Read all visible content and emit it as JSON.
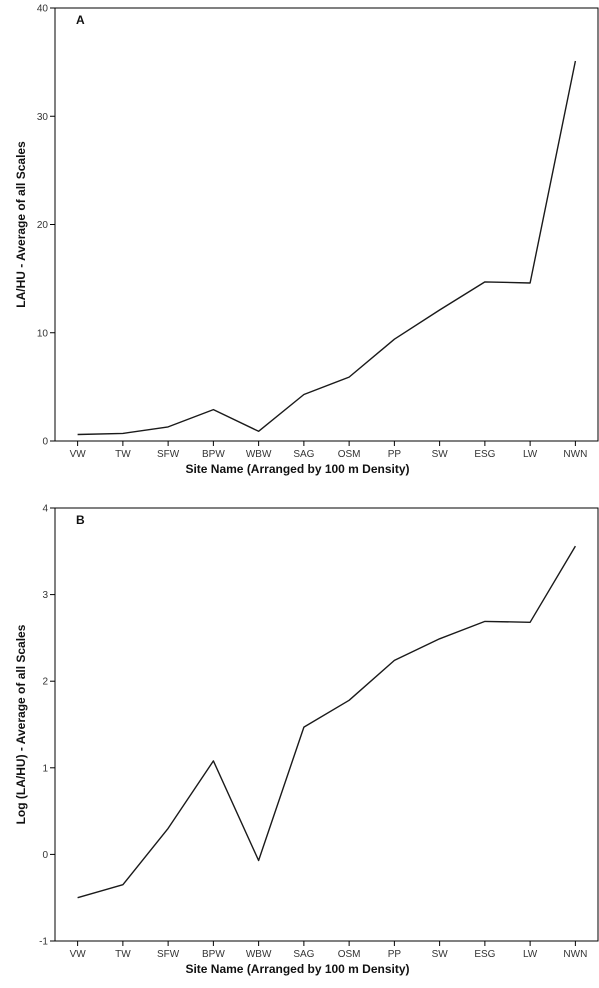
{
  "chart_data": [
    {
      "type": "line",
      "panel_label": "A",
      "categories": [
        "VW",
        "TW",
        "SFW",
        "BPW",
        "WBW",
        "SAG",
        "OSM",
        "PP",
        "SW",
        "ESG",
        "LW",
        "NWN"
      ],
      "values": [
        0.6,
        0.7,
        1.3,
        2.9,
        0.9,
        4.3,
        5.9,
        9.4,
        12.1,
        14.7,
        14.6,
        35.1
      ],
      "xlabel": "Site Name (Arranged by 100 m Density)",
      "ylabel": "LA/HU - Average of all Scales",
      "ylim": [
        0,
        40
      ],
      "yticks": [
        0,
        10,
        20,
        30,
        40
      ],
      "grid": false,
      "line_color": "#1a1a1a"
    },
    {
      "type": "line",
      "panel_label": "B",
      "categories": [
        "VW",
        "TW",
        "SFW",
        "BPW",
        "WBW",
        "SAG",
        "OSM",
        "PP",
        "SW",
        "ESG",
        "LW",
        "NWN"
      ],
      "values": [
        -0.5,
        -0.35,
        0.3,
        1.08,
        -0.07,
        1.47,
        1.78,
        2.24,
        2.49,
        2.69,
        2.68,
        3.56
      ],
      "xlabel": "Site Name (Arranged by 100 m Density)",
      "ylabel": "Log (LA/HU) - Average of all Scales",
      "ylim": [
        -1,
        4
      ],
      "yticks": [
        -1,
        0,
        1,
        2,
        3,
        4
      ],
      "grid": false,
      "line_color": "#1a1a1a"
    }
  ]
}
